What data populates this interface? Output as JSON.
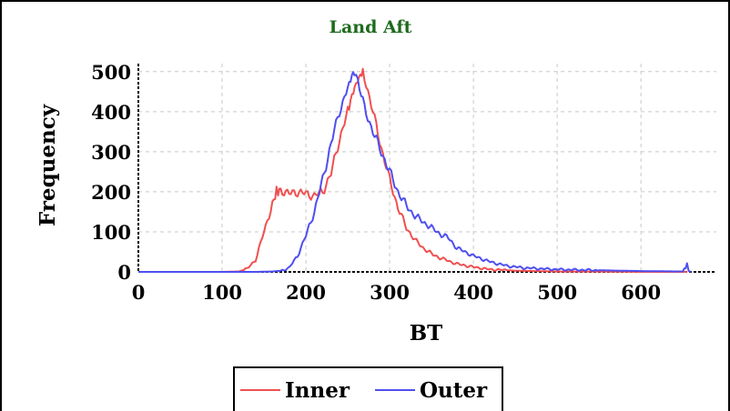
{
  "chart_data": {
    "type": "line",
    "title": "Land Aft",
    "xlabel": "BT",
    "ylabel": "Frequency",
    "xlim": [
      0,
      690
    ],
    "ylim": [
      0,
      520
    ],
    "xticks": [
      0,
      100,
      200,
      300,
      400,
      500,
      600
    ],
    "yticks": [
      0,
      100,
      200,
      300,
      400,
      500
    ],
    "xtick_labels": [
      "0",
      "100",
      "200",
      "300",
      "400",
      "500",
      "600"
    ],
    "ytick_labels": [
      "0",
      "100",
      "200",
      "300",
      "400",
      "500"
    ],
    "grid": true,
    "legend_position": "bottom-center",
    "series": [
      {
        "name": "Inner",
        "color": "#f05050",
        "x": [
          0,
          100,
          120,
          130,
          140,
          150,
          160,
          165,
          170,
          180,
          190,
          200,
          210,
          220,
          230,
          240,
          250,
          255,
          260,
          265,
          268,
          272,
          280,
          290,
          300,
          310,
          320,
          330,
          340,
          350,
          360,
          380,
          400,
          420,
          450,
          500,
          550,
          600,
          655
        ],
        "y": [
          0,
          0,
          1,
          8,
          30,
          100,
          170,
          200,
          205,
          195,
          200,
          195,
          190,
          200,
          245,
          330,
          400,
          440,
          470,
          490,
          500,
          470,
          400,
          310,
          230,
          160,
          110,
          80,
          60,
          45,
          35,
          20,
          12,
          6,
          3,
          1,
          1,
          0,
          0
        ]
      },
      {
        "name": "Outer",
        "color": "#4f4ff0",
        "x": [
          0,
          140,
          160,
          170,
          180,
          190,
          200,
          210,
          220,
          230,
          240,
          250,
          255,
          258,
          262,
          266,
          270,
          280,
          290,
          300,
          310,
          320,
          330,
          340,
          350,
          360,
          370,
          380,
          400,
          420,
          440,
          460,
          480,
          500,
          550,
          600,
          650,
          655,
          657,
          660
        ],
        "y": [
          0,
          0,
          1,
          3,
          10,
          40,
          90,
          150,
          230,
          320,
          400,
          460,
          490,
          500,
          480,
          440,
          410,
          350,
          300,
          250,
          200,
          165,
          140,
          125,
          110,
          95,
          85,
          60,
          40,
          25,
          15,
          10,
          8,
          6,
          4,
          2,
          1,
          18,
          2,
          0
        ]
      }
    ]
  }
}
